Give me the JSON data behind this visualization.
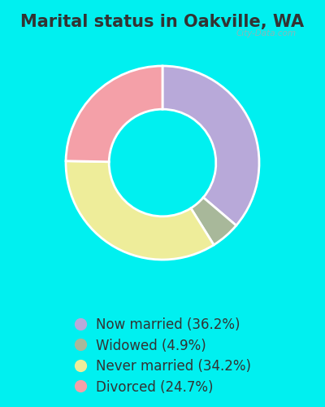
{
  "title": "Marital status in Oakville, WA",
  "categories": [
    "Now married (36.2%)",
    "Widowed (4.9%)",
    "Never married (34.2%)",
    "Divorced (24.7%)"
  ],
  "values": [
    36.2,
    4.9,
    34.2,
    24.7
  ],
  "colors": [
    "#b8a9d9",
    "#a8b89a",
    "#eeed9a",
    "#f4a0a8"
  ],
  "background_color": "#d8f0e4",
  "outer_background": "#00f0f0",
  "title_fontsize": 15,
  "legend_fontsize": 12,
  "watermark": "City-Data.com",
  "donut_width": 0.38,
  "start_angle": 90,
  "text_color": "#333333"
}
